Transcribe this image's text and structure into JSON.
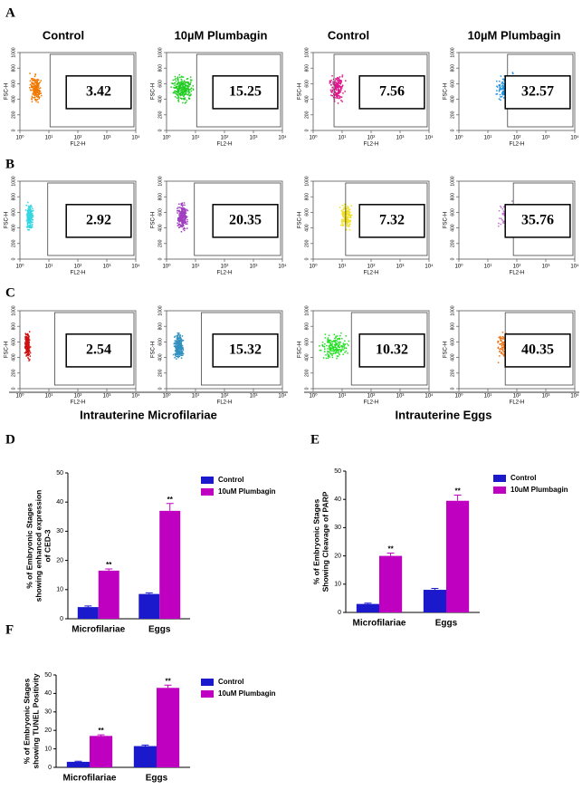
{
  "panel_labels": [
    "A",
    "B",
    "C",
    "D",
    "E",
    "F"
  ],
  "flow": {
    "column_headers": [
      "Control",
      "10µM Plumbagin",
      "Control",
      "10µM Plumbagin"
    ],
    "x_label": "FL2-H",
    "y_label": "FSC-H",
    "xlim": [
      1,
      10000
    ],
    "xticks": [
      {
        "value": 1,
        "label": "10⁰"
      },
      {
        "value": 10,
        "label": "10¹"
      },
      {
        "value": 100,
        "label": "10²"
      },
      {
        "value": 1000,
        "label": "10³"
      },
      {
        "value": 10000,
        "label": "10⁴"
      }
    ],
    "ylim": [
      0,
      1000
    ],
    "yticks": [
      0,
      200,
      400,
      600,
      800,
      1000
    ],
    "rows": [
      {
        "gates": [
          3.42,
          15.25,
          7.56,
          32.57
        ],
        "colors": [
          "#f07800",
          "#22cc22",
          "#e0148c",
          "#1e90e0"
        ]
      },
      {
        "gates": [
          2.92,
          20.35,
          7.32,
          35.76
        ],
        "colors": [
          "#33d6e0",
          "#a040c0",
          "#f0e020",
          "#c070d0"
        ]
      },
      {
        "gates": [
          2.54,
          15.32,
          10.32,
          40.35
        ],
        "colors": [
          "#d01010",
          "#3090c0",
          "#20e020",
          "#f07010"
        ]
      }
    ],
    "group_labels": [
      "Intrauterine Microfilariae",
      "Intrauterine Eggs"
    ]
  },
  "chart_data": [
    {
      "type": "bar",
      "ylabel": [
        "% of Embryonic Stages",
        "showing enhanced expression",
        "of CED-3"
      ],
      "categories": [
        "Microfilariae",
        "Eggs"
      ],
      "series": [
        {
          "name": "Control",
          "color": "#1a1acc",
          "values": [
            4,
            8.5
          ],
          "errors": [
            0.4,
            0.4
          ]
        },
        {
          "name": "10uM Plumbagin",
          "color": "#c000c0",
          "values": [
            16.5,
            37
          ],
          "errors": [
            0.6,
            2.5
          ]
        }
      ],
      "significance": [
        "**",
        "**"
      ],
      "ylim": [
        0,
        50
      ],
      "yticks": [
        0,
        10,
        20,
        30,
        40,
        50
      ]
    },
    {
      "type": "bar",
      "ylabel": [
        "% of Embryonic Stages",
        "Showing Cleavage of PARP"
      ],
      "categories": [
        "Microfilariae",
        "Eggs"
      ],
      "series": [
        {
          "name": "Control",
          "color": "#1a1acc",
          "values": [
            3,
            8
          ],
          "errors": [
            0.3,
            0.5
          ]
        },
        {
          "name": "10uM Plumbagin",
          "color": "#c000c0",
          "values": [
            20,
            39.5
          ],
          "errors": [
            1,
            2
          ]
        }
      ],
      "significance": [
        "**",
        "**"
      ],
      "ylim": [
        0,
        50
      ],
      "yticks": [
        0,
        10,
        20,
        30,
        40,
        50
      ]
    },
    {
      "type": "bar",
      "ylabel": [
        "% of Embryonic Stages",
        "showing TUNEL Positivity"
      ],
      "categories": [
        "Microfilariae",
        "Eggs"
      ],
      "series": [
        {
          "name": "Control",
          "color": "#1a1acc",
          "values": [
            3,
            11.5
          ],
          "errors": [
            0.3,
            0.6
          ]
        },
        {
          "name": "10uM Plumbagin",
          "color": "#c000c0",
          "values": [
            17,
            43
          ],
          "errors": [
            0.6,
            1.5
          ]
        }
      ],
      "significance": [
        "**",
        "**"
      ],
      "ylim": [
        0,
        50
      ],
      "yticks": [
        0,
        10,
        20,
        30,
        40,
        50
      ]
    }
  ]
}
